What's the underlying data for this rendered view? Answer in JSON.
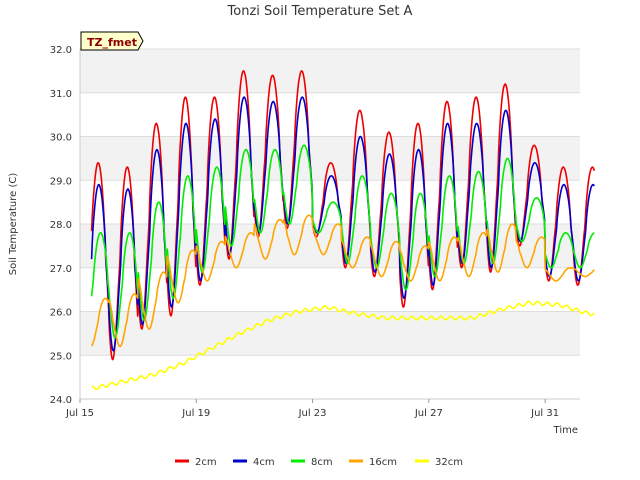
{
  "chart_data": {
    "type": "line",
    "title": "Tonzi Soil Temperature Set A",
    "xlabel": "Time",
    "ylabel": "Soil Temperature (C)",
    "site_badge": "TZ_fmet",
    "ylim": [
      24.0,
      32.0
    ],
    "yticks": [
      "24.0",
      "25.0",
      "26.0",
      "27.0",
      "28.0",
      "29.0",
      "30.0",
      "31.0",
      "32.0"
    ],
    "xlim_days": [
      15,
      32.2
    ],
    "xticks": [
      {
        "label": "Jul 15",
        "day": 15
      },
      {
        "label": "Jul 19",
        "day": 19
      },
      {
        "label": "Jul 23",
        "day": 23
      },
      {
        "label": "Jul 27",
        "day": 27
      },
      {
        "label": "Jul 31",
        "day": 31
      }
    ],
    "grid": true,
    "legend_position": "bottom",
    "daily_extremes": {
      "days": [
        "Jul 15",
        "Jul 16",
        "Jul 17",
        "Jul 18",
        "Jul 19",
        "Jul 20",
        "Jul 21",
        "Jul 22",
        "Jul 23",
        "Jul 24",
        "Jul 25",
        "Jul 26",
        "Jul 27",
        "Jul 28",
        "Jul 29",
        "Jul 30",
        "Jul 31",
        "Aug 1"
      ],
      "series_order": [
        "2cm",
        "4cm",
        "8cm",
        "16cm",
        "32cm"
      ]
    },
    "series": [
      {
        "name": "2cm",
        "color": "#ee0000",
        "daily_min": [
          25.1,
          24.9,
          25.6,
          25.9,
          26.6,
          27.2,
          27.7,
          27.9,
          27.7,
          27.0,
          26.8,
          26.1,
          26.5,
          27.0,
          26.9,
          27.5,
          26.7,
          26.6
        ],
        "daily_max": [
          29.4,
          29.3,
          30.3,
          30.9,
          30.9,
          31.5,
          31.4,
          31.5,
          29.4,
          30.6,
          30.1,
          30.3,
          30.8,
          30.9,
          31.2,
          29.8,
          29.3,
          29.3
        ]
      },
      {
        "name": "4cm",
        "color": "#0000cc",
        "daily_min": [
          25.2,
          25.1,
          25.7,
          26.1,
          26.7,
          27.3,
          27.8,
          28.0,
          27.8,
          27.1,
          26.9,
          26.3,
          26.6,
          27.1,
          27.0,
          27.6,
          26.8,
          26.7
        ],
        "daily_max": [
          28.9,
          28.8,
          29.7,
          30.3,
          30.4,
          30.9,
          30.8,
          30.9,
          29.1,
          30.0,
          29.6,
          29.7,
          30.3,
          30.3,
          30.6,
          29.4,
          28.9,
          28.9
        ]
      },
      {
        "name": "8cm",
        "color": "#00ee00",
        "daily_min": [
          25.5,
          25.4,
          25.8,
          26.3,
          26.9,
          27.5,
          27.8,
          28.0,
          27.8,
          27.1,
          27.0,
          26.5,
          26.8,
          27.1,
          27.1,
          27.6,
          27.0,
          27.0
        ],
        "daily_max": [
          27.8,
          27.8,
          28.5,
          29.1,
          29.3,
          29.7,
          29.7,
          29.8,
          28.5,
          29.1,
          28.7,
          28.7,
          29.1,
          29.2,
          29.5,
          28.6,
          27.8,
          27.8
        ]
      },
      {
        "name": "16cm",
        "color": "#ffa500",
        "daily_min": [
          25.2,
          25.2,
          25.6,
          26.2,
          26.7,
          27.0,
          27.2,
          27.3,
          27.3,
          27.0,
          26.8,
          26.7,
          26.7,
          26.8,
          26.9,
          27.0,
          26.7,
          26.8
        ],
        "daily_max": [
          26.3,
          26.4,
          26.9,
          27.4,
          27.6,
          27.8,
          28.1,
          28.2,
          28.0,
          27.7,
          27.6,
          27.5,
          27.7,
          27.8,
          28.0,
          27.7,
          27.0,
          27.0
        ]
      },
      {
        "name": "32cm",
        "color": "#ffff00",
        "daily_min": [
          24.2,
          24.3,
          24.5,
          24.7,
          25.0,
          25.4,
          25.7,
          25.9,
          26.0,
          25.9,
          25.8,
          25.8,
          25.8,
          25.8,
          26.0,
          26.1,
          26.1,
          25.9
        ],
        "daily_max": [
          24.3,
          24.5,
          24.6,
          24.9,
          25.3,
          25.6,
          25.9,
          26.1,
          26.2,
          26.0,
          25.9,
          25.9,
          25.9,
          25.9,
          26.1,
          26.3,
          26.2,
          26.0
        ]
      }
    ]
  }
}
